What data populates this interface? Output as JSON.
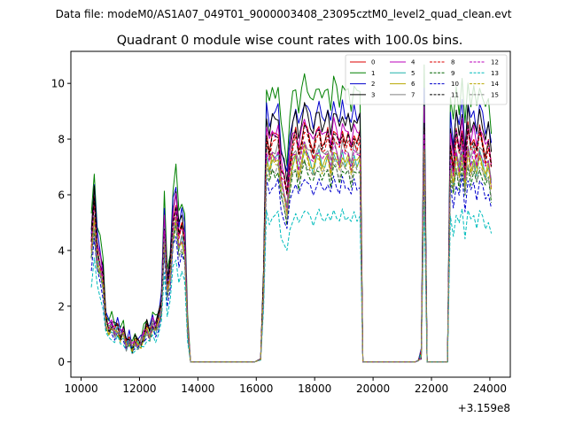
{
  "figure": {
    "suptitle": "Data file: modeM0/AS1A07_049T01_9000003408_23095cztM0_level2_quad_clean.evt",
    "offset_label": "+3.159e8"
  },
  "chart_data": {
    "type": "line",
    "title": "Quadrant 0 module wise count rates with 100.0s bins.",
    "xlabel": "",
    "ylabel": "",
    "xlim": [
      9650,
      24700
    ],
    "ylim": [
      -0.55,
      11.15
    ],
    "x_offset": 315900000,
    "x_ticks": [
      10000,
      12000,
      14000,
      16000,
      18000,
      20000,
      22000,
      24000
    ],
    "x_tick_labels": [
      "10000",
      "12000",
      "14000",
      "16000",
      "18000",
      "20000",
      "22000",
      "24000"
    ],
    "y_ticks": [
      0,
      2,
      4,
      6,
      8,
      10
    ],
    "y_tick_labels": [
      "0",
      "2",
      "4",
      "6",
      "8",
      "10"
    ],
    "grid": false,
    "legend_position": "top-right",
    "legend_columns": 4,
    "base_profile": {
      "x": [
        10350,
        10450,
        10550,
        10650,
        10750,
        10850,
        10950,
        11050,
        11150,
        11250,
        11350,
        11450,
        11550,
        11650,
        11750,
        11850,
        11950,
        12050,
        12150,
        12250,
        12350,
        12450,
        12550,
        12650,
        12750,
        12850,
        12950,
        13050,
        13150,
        13250,
        13350,
        13450,
        13550,
        13650,
        13750,
        13850,
        14050,
        14250,
        14450,
        14650,
        14850,
        15050,
        15250,
        15450,
        15650,
        15850,
        15950,
        16050,
        16150,
        16250,
        16350,
        16450,
        16550,
        16650,
        16750,
        16850,
        16950,
        17050,
        17150,
        17250,
        17350,
        17450,
        17550,
        17650,
        17750,
        17850,
        17950,
        18050,
        18150,
        18250,
        18350,
        18450,
        18550,
        18650,
        18750,
        18850,
        18950,
        19050,
        19150,
        19250,
        19350,
        19450,
        19550,
        19650,
        19850,
        20050,
        20250,
        20450,
        20650,
        20850,
        21050,
        21250,
        21450,
        21550,
        21650,
        21750,
        21850,
        21950,
        22150,
        22350,
        22450,
        22550,
        22650,
        22750,
        22850,
        22950,
        23050,
        23150,
        23250,
        23350,
        23450,
        23550,
        23650,
        23750,
        23850,
        23950,
        24050
      ],
      "y": [
        4.5,
        6.0,
        4.3,
        3.8,
        3.2,
        1.6,
        1.3,
        1.4,
        1.2,
        1.35,
        1.0,
        1.15,
        0.65,
        0.9,
        0.5,
        0.8,
        0.7,
        0.75,
        1.0,
        1.3,
        1.1,
        1.5,
        1.3,
        1.6,
        2.2,
        5.2,
        2.8,
        3.5,
        5.4,
        6.0,
        4.7,
        5.1,
        4.6,
        1.3,
        0.0,
        0.0,
        0.0,
        0.0,
        0.0,
        0.0,
        0.0,
        0.0,
        0.0,
        0.0,
        0.0,
        0.0,
        0.0,
        0.05,
        0.1,
        3.0,
        8.6,
        8.0,
        8.5,
        8.4,
        8.6,
        7.3,
        6.9,
        6.3,
        7.6,
        8.3,
        8.6,
        7.9,
        8.4,
        8.9,
        8.6,
        8.3,
        8.0,
        8.5,
        8.7,
        8.2,
        8.3,
        8.6,
        8.0,
        8.8,
        8.5,
        8.1,
        8.7,
        8.3,
        8.5,
        8.0,
        8.6,
        8.3,
        8.5,
        0.0,
        0.0,
        0.0,
        0.0,
        0.0,
        0.0,
        0.0,
        0.0,
        0.0,
        0.0,
        0.05,
        0.3,
        9.2,
        0.0,
        0.0,
        0.0,
        0.0,
        0.0,
        0.0,
        8.3,
        7.4,
        8.6,
        7.9,
        8.8,
        7.3,
        8.8,
        8.1,
        8.5,
        7.9,
        8.7,
        8.3,
        7.8,
        8.2,
        7.3
      ]
    },
    "series": [
      {
        "name": "0",
        "color": "#dd0000",
        "dash": "solid",
        "scale": 0.96
      },
      {
        "name": "1",
        "color": "#008000",
        "dash": "solid",
        "scale": 1.15
      },
      {
        "name": "2",
        "color": "#0000cc",
        "dash": "solid",
        "scale": 1.06
      },
      {
        "name": "3",
        "color": "#000000",
        "dash": "solid",
        "scale": 1.03
      },
      {
        "name": "4",
        "color": "#bb00bb",
        "dash": "solid",
        "scale": 0.98
      },
      {
        "name": "5",
        "color": "#20b2aa",
        "dash": "solid",
        "scale": 0.86
      },
      {
        "name": "6",
        "color": "#b8a800",
        "dash": "solid",
        "scale": 0.86
      },
      {
        "name": "7",
        "color": "#808080",
        "dash": "solid",
        "scale": 0.9
      },
      {
        "name": "8",
        "color": "#dd0000",
        "dash": "dashed",
        "scale": 0.93
      },
      {
        "name": "9",
        "color": "#006400",
        "dash": "dashed",
        "scale": 0.8
      },
      {
        "name": "10",
        "color": "#0000cc",
        "dash": "dashed",
        "scale": 0.75
      },
      {
        "name": "11",
        "color": "#000000",
        "dash": "dashed",
        "scale": 0.95
      },
      {
        "name": "12",
        "color": "#bb00bb",
        "dash": "dashed",
        "scale": 0.88
      },
      {
        "name": "13",
        "color": "#00bcbc",
        "dash": "dashed",
        "scale": 0.62
      },
      {
        "name": "14",
        "color": "#b8a800",
        "dash": "dashed",
        "scale": 0.84
      },
      {
        "name": "15",
        "color": "#808080",
        "dash": "dashed",
        "scale": 0.82
      }
    ]
  }
}
